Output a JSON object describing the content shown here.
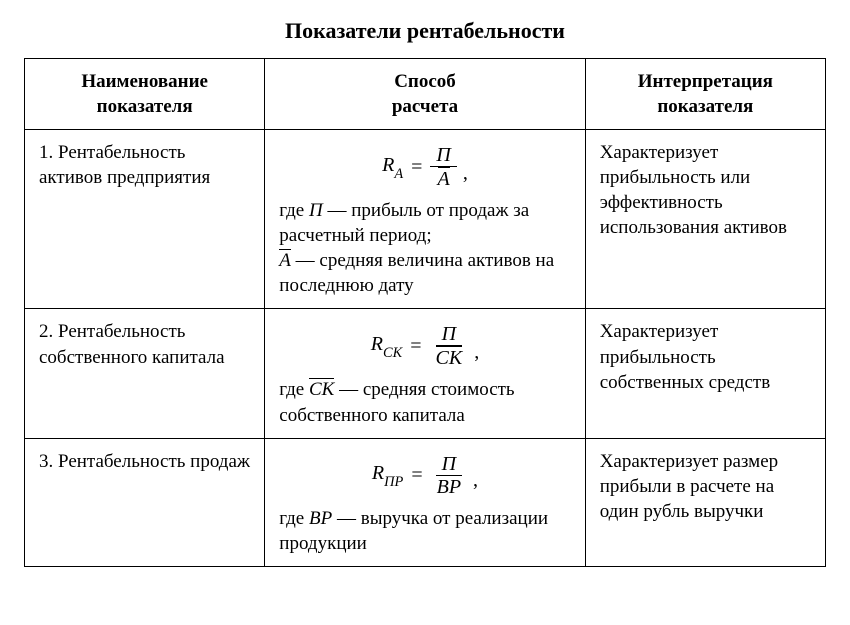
{
  "document": {
    "title": "Показатели рентабельности",
    "font_family": "Times New Roman",
    "title_fontsize": 22,
    "body_fontsize": 19,
    "formula_fontsize": 20,
    "background_color": "#ffffff",
    "text_color": "#000000",
    "border_color": "#000000",
    "border_width": 1.5,
    "columns": [
      {
        "header_line1": "Наименование",
        "header_line2": "показателя",
        "width_pct": 30
      },
      {
        "header_line1": "Способ",
        "header_line2": "расчета",
        "width_pct": 40
      },
      {
        "header_line1": "Интерпретация",
        "header_line2": "показателя",
        "width_pct": 30
      }
    ],
    "rows": [
      {
        "name": "1. Рентабельность активов предприятия",
        "formula": {
          "result_symbol": "R",
          "result_subscript": "A",
          "numerator": {
            "symbol": "П",
            "overline": false
          },
          "denominator": {
            "symbol": "A",
            "overline": true
          },
          "trailing_comma": ","
        },
        "where_prefix": "где ",
        "where_terms": [
          {
            "symbol": "П",
            "overline": false,
            "text": " — прибыль от продаж за расчетный период;"
          },
          {
            "symbol": "A",
            "overline": true,
            "text": " — средняя величина активов на последнюю дату"
          }
        ],
        "interpretation": "Характеризует прибыльность или эффективность использования активов"
      },
      {
        "name": "2. Рентабельность собственного капитала",
        "formula": {
          "result_symbol": "R",
          "result_subscript": "CK",
          "numerator": {
            "symbol": "П",
            "overline": false
          },
          "denominator": {
            "symbol": "CK",
            "overline": true
          },
          "trailing_comma": ","
        },
        "where_prefix": "где ",
        "where_terms": [
          {
            "symbol": "CK",
            "overline": true,
            "text": " — средняя стоимость собственного капитала"
          }
        ],
        "interpretation": "Характеризует прибыльность собственных средств"
      },
      {
        "name": "3. Рентабельность продаж",
        "formula": {
          "result_symbol": "R",
          "result_subscript": "ПР",
          "numerator": {
            "symbol": "П",
            "overline": false
          },
          "denominator": {
            "symbol": "BP",
            "overline": false
          },
          "trailing_comma": ","
        },
        "where_prefix": "где ",
        "where_terms": [
          {
            "symbol": "BP",
            "overline": false,
            "text": " — выручка от реализации продукции"
          }
        ],
        "interpretation": "Характеризует размер прибыли в расчете на один рубль выручки"
      }
    ]
  }
}
